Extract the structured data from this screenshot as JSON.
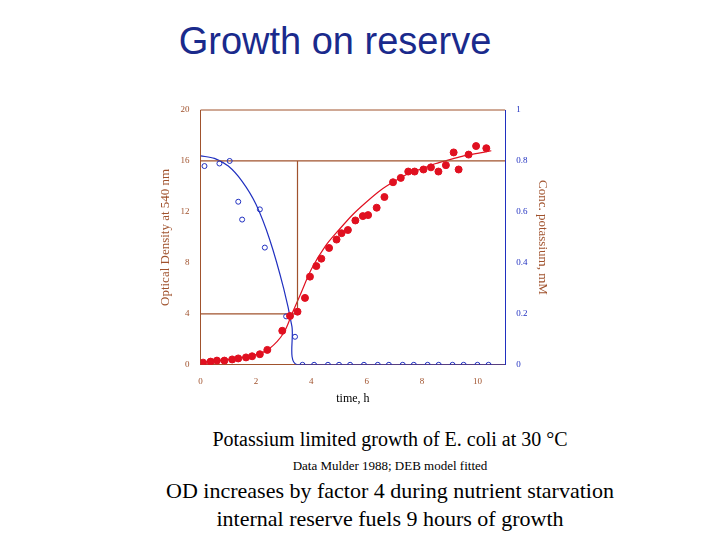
{
  "chart_data": {
    "type": "scatter",
    "title": "Growth on reserve",
    "x_label": "time, h",
    "y_label": "Optical Density at 540 nm",
    "y2_label": "Conc. potassium, mM",
    "captions": [
      "Potassium limited growth of E. coli at 30 °C",
      "Data Mulder 1988; DEB model fitted",
      "OD increases by factor 4 during nutrient starvation",
      "internal reserve fuels 9 hours of growth"
    ],
    "xlim": [
      0,
      11
    ],
    "xticks": [
      0,
      2,
      4,
      6,
      8,
      10
    ],
    "ylim": [
      0,
      20
    ],
    "yticks": [
      0,
      4,
      8,
      12,
      16,
      20
    ],
    "y2lim": [
      0,
      1
    ],
    "y2ticks": [
      0,
      0.2,
      0.4,
      0.6,
      0.8,
      1
    ],
    "grid": false,
    "series": [
      {
        "color": "#a0522d",
        "marker": "none",
        "line_style": "solid",
        "x": [
          0,
          11
        ],
        "values": [
          16,
          16
        ]
      },
      {
        "color": "#a0522d",
        "marker": "none",
        "line_style": "solid",
        "x": [
          3.5,
          3.5
        ],
        "values": [
          16,
          4
        ]
      },
      {
        "color": "#a0522d",
        "marker": "none",
        "line_style": "solid",
        "x": [
          0,
          3.5
        ],
        "values": [
          4,
          4
        ]
      },
      {
        "color": "#e01020",
        "marker": "circle",
        "line_style": "none",
        "x": [
          0.09,
          0.36,
          0.59,
          0.86,
          1.14,
          1.36,
          1.64,
          1.86,
          2.14,
          2.41,
          2.95,
          3.23,
          3.5,
          3.77,
          3.95,
          4.18,
          4.36,
          4.64,
          4.91,
          5.09,
          5.32,
          5.59,
          5.86,
          6.05,
          6.36,
          6.64,
          6.95,
          7.23,
          7.5,
          7.73,
          8.05,
          8.32,
          8.59,
          8.86,
          9.14,
          9.32,
          9.68,
          9.95,
          10.32
        ],
        "values": [
          0.17,
          0.25,
          0.33,
          0.33,
          0.42,
          0.5,
          0.58,
          0.67,
          0.83,
          1.17,
          2.67,
          3.83,
          4.17,
          5.25,
          6.92,
          7.75,
          8.33,
          9.17,
          9.83,
          10.33,
          10.58,
          11.33,
          11.67,
          11.75,
          12.33,
          13.17,
          14.33,
          14.67,
          15.17,
          15.17,
          15.33,
          15.5,
          15.17,
          15.67,
          16.67,
          15.33,
          16.5,
          17.17,
          17
        ]
      },
      {
        "color": "#e01020",
        "marker": "none",
        "line_style": "solid",
        "x": [
          0,
          1,
          2,
          2.5,
          3,
          3.3,
          3.6,
          4,
          4.5,
          5,
          5.5,
          6,
          6.5,
          7,
          7.5,
          8,
          8.5,
          9,
          9.5,
          10,
          10.5
        ],
        "values": [
          0.2,
          0.4,
          0.8,
          1.3,
          2.5,
          4,
          5.5,
          7.5,
          9.3,
          10.6,
          11.8,
          12.8,
          13.7,
          14.4,
          15,
          15.4,
          15.8,
          16.1,
          16.4,
          16.6,
          16.8
        ]
      },
      {
        "color": "#2030c0",
        "marker": "circle_open",
        "line_style": "none",
        "axis": "y2",
        "x": [
          0.14,
          0.68,
          1.05,
          1.36,
          1.5,
          2.14,
          2.32,
          3.09,
          3.41,
          3.68,
          4.1,
          4.6,
          5.0,
          5.4,
          5.9,
          6.4,
          6.8,
          7.3,
          7.7,
          8.2,
          8.6,
          9.1,
          9.5,
          10.0,
          10.4
        ],
        "values": [
          0.78,
          0.79,
          0.8,
          0.64,
          0.57,
          0.61,
          0.46,
          0.19,
          0.11,
          0,
          0,
          0,
          0,
          0,
          0,
          0,
          0,
          0,
          0,
          0,
          0,
          0,
          0,
          0,
          0
        ]
      },
      {
        "color": "#2030c0",
        "marker": "none",
        "line_style": "solid",
        "axis": "y2",
        "x": [
          0,
          0.5,
          1,
          1.5,
          2,
          2.5,
          3,
          3.3,
          3.5,
          11
        ],
        "values": [
          0.82,
          0.81,
          0.78,
          0.72,
          0.63,
          0.49,
          0.3,
          0.15,
          0,
          0
        ]
      }
    ]
  }
}
